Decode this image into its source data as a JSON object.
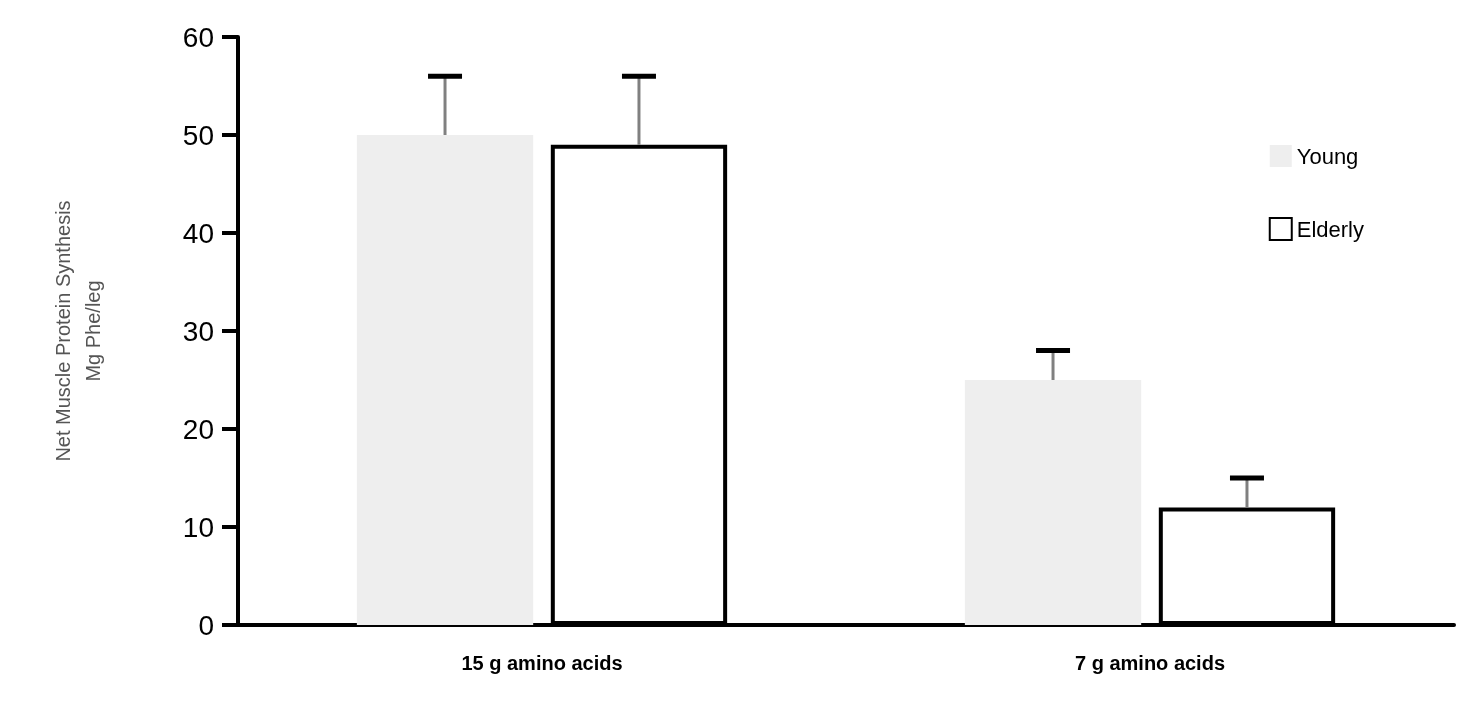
{
  "chart_data": {
    "type": "bar",
    "ylabel": "Net Muscle Protein Synthesis\nMg Phe/leg",
    "categories": [
      "15 g amino acids",
      "7 g amino acids"
    ],
    "series": [
      {
        "name": "Young",
        "color": "#eeeeee",
        "values": [
          50,
          25
        ],
        "errors": [
          [
            50,
            56
          ],
          [
            25,
            28
          ]
        ]
      },
      {
        "name": "Elderly",
        "color": "#ffffff",
        "values": [
          49,
          12
        ],
        "errors": [
          [
            49,
            56
          ],
          [
            12,
            15
          ]
        ]
      }
    ],
    "ylim": [
      0,
      60
    ],
    "yticks": [
      0,
      10,
      20,
      30,
      40,
      50,
      60
    ],
    "grid": false,
    "legend": "right"
  }
}
